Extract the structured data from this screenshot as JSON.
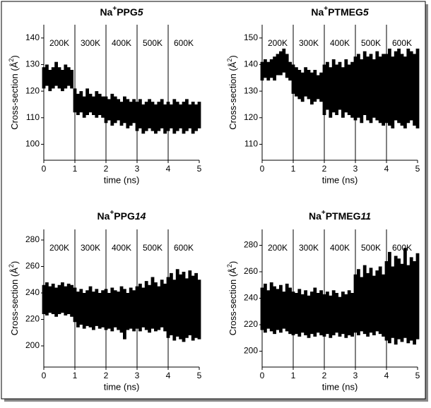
{
  "chart_data": [
    {
      "type": "range",
      "title": [
        "Na",
        "+",
        "PPG",
        "5"
      ],
      "ylabel": [
        "Cross-section (Å",
        "2",
        ")"
      ],
      "xlabel": "time (ns)",
      "regions": [
        "200K",
        "300K",
        "400K",
        "500K",
        "600K"
      ],
      "dividers": [
        1,
        2,
        3,
        4
      ],
      "xlim": [
        0,
        5
      ],
      "ylim": [
        94,
        145
      ],
      "xticks": [
        0,
        1,
        2,
        3,
        4,
        5
      ],
      "yticks": [
        100,
        110,
        120,
        130,
        140
      ],
      "x": [
        0,
        0.1,
        0.2,
        0.3,
        0.4,
        0.5,
        0.6,
        0.7,
        0.8,
        0.9,
        1,
        1.1,
        1.2,
        1.3,
        1.4,
        1.5,
        1.6,
        1.7,
        1.8,
        1.9,
        2,
        2.1,
        2.2,
        2.3,
        2.4,
        2.5,
        2.6,
        2.7,
        2.8,
        2.9,
        3,
        3.1,
        3.2,
        3.3,
        3.4,
        3.5,
        3.6,
        3.7,
        3.8,
        3.9,
        4,
        4.1,
        4.2,
        4.3,
        4.4,
        4.5,
        4.6,
        4.7,
        4.8,
        4.9,
        5
      ],
      "series": [
        {
          "color": "#000000",
          "low": [
            121,
            122,
            120,
            121,
            122,
            121,
            120,
            121,
            122,
            121,
            112,
            111,
            112,
            110,
            111,
            112,
            111,
            110,
            111,
            110,
            108,
            109,
            107,
            108,
            109,
            107,
            108,
            106,
            107,
            108,
            105,
            106,
            104,
            105,
            106,
            105,
            104,
            105,
            106,
            104,
            105,
            106,
            104,
            105,
            106,
            104,
            105,
            106,
            104,
            105,
            106
          ],
          "high": [
            129,
            130,
            128,
            129,
            131,
            129,
            128,
            130,
            129,
            128,
            121,
            119,
            120,
            118,
            121,
            119,
            118,
            120,
            119,
            118,
            118,
            117,
            119,
            118,
            117,
            116,
            118,
            117,
            116,
            117,
            116,
            117,
            115,
            116,
            117,
            116,
            115,
            116,
            117,
            115,
            116,
            115,
            117,
            116,
            115,
            116,
            117,
            115,
            116,
            115,
            116
          ]
        }
      ]
    },
    {
      "type": "range",
      "title": [
        "Na",
        "+",
        "PTMEG",
        "5"
      ],
      "ylabel": [
        "Cross-section (Å",
        "2",
        ")"
      ],
      "xlabel": "time (ns)",
      "regions": [
        "200K",
        "300K",
        "400K",
        "500K",
        "600K"
      ],
      "dividers": [
        1,
        2,
        3,
        4
      ],
      "xlim": [
        0,
        5
      ],
      "ylim": [
        104,
        155
      ],
      "xticks": [
        0,
        1,
        2,
        3,
        4,
        5
      ],
      "yticks": [
        110,
        120,
        130,
        140,
        150
      ],
      "x": [
        0,
        0.1,
        0.2,
        0.3,
        0.4,
        0.5,
        0.6,
        0.7,
        0.8,
        0.9,
        1,
        1.1,
        1.2,
        1.3,
        1.4,
        1.5,
        1.6,
        1.7,
        1.8,
        1.9,
        2,
        2.1,
        2.2,
        2.3,
        2.4,
        2.5,
        2.6,
        2.7,
        2.8,
        2.9,
        3,
        3.1,
        3.2,
        3.3,
        3.4,
        3.5,
        3.6,
        3.7,
        3.8,
        3.9,
        4,
        4.1,
        4.2,
        4.3,
        4.4,
        4.5,
        4.6,
        4.7,
        4.8,
        4.9,
        5
      ],
      "series": [
        {
          "color": "#000000",
          "low": [
            134,
            135,
            134,
            135,
            134,
            136,
            136,
            137,
            135,
            134,
            129,
            128,
            127,
            126,
            128,
            127,
            125,
            126,
            127,
            126,
            121,
            123,
            120,
            122,
            121,
            123,
            120,
            122,
            121,
            120,
            119,
            120,
            118,
            121,
            119,
            118,
            120,
            119,
            118,
            117,
            118,
            117,
            116,
            119,
            118,
            117,
            116,
            118,
            119,
            117,
            116
          ],
          "high": [
            141,
            142,
            141,
            142,
            143,
            144,
            145,
            146,
            144,
            141,
            140,
            139,
            138,
            137,
            139,
            138,
            137,
            138,
            136,
            137,
            140,
            141,
            139,
            142,
            140,
            141,
            139,
            142,
            140,
            141,
            143,
            144,
            142,
            145,
            143,
            144,
            142,
            145,
            143,
            144,
            144,
            146,
            143,
            145,
            146,
            144,
            143,
            146,
            145,
            144,
            146
          ]
        }
      ]
    },
    {
      "type": "range",
      "title": [
        "Na",
        "+",
        "PPG",
        "14"
      ],
      "ylabel": [
        "Cross-section (Å",
        "2",
        ")"
      ],
      "xlabel": "time (ns)",
      "regions": [
        "200K",
        "300K",
        "400K",
        "500K",
        "600K"
      ],
      "dividers": [
        1,
        2,
        3,
        4
      ],
      "xlim": [
        0,
        5
      ],
      "ylim": [
        184,
        288
      ],
      "xticks": [
        0,
        1,
        2,
        3,
        4,
        5
      ],
      "yticks": [
        200,
        220,
        240,
        260,
        280
      ],
      "x": [
        0,
        0.1,
        0.2,
        0.3,
        0.4,
        0.5,
        0.6,
        0.7,
        0.8,
        0.9,
        1,
        1.1,
        1.2,
        1.3,
        1.4,
        1.5,
        1.6,
        1.7,
        1.8,
        1.9,
        2,
        2.1,
        2.2,
        2.3,
        2.4,
        2.5,
        2.6,
        2.7,
        2.8,
        2.9,
        3,
        3.1,
        3.2,
        3.3,
        3.4,
        3.5,
        3.6,
        3.7,
        3.8,
        3.9,
        4,
        4.1,
        4.2,
        4.3,
        4.4,
        4.5,
        4.6,
        4.7,
        4.8,
        4.9,
        5
      ],
      "series": [
        {
          "color": "#000000",
          "low": [
            224,
            223,
            225,
            224,
            222,
            224,
            225,
            223,
            224,
            222,
            218,
            214,
            216,
            213,
            215,
            214,
            212,
            215,
            213,
            214,
            212,
            213,
            211,
            214,
            212,
            210,
            205,
            212,
            213,
            211,
            213,
            211,
            214,
            212,
            210,
            213,
            211,
            212,
            214,
            211,
            206,
            208,
            204,
            207,
            205,
            203,
            206,
            208,
            204,
            206,
            205
          ],
          "high": [
            246,
            248,
            245,
            247,
            244,
            246,
            248,
            245,
            247,
            246,
            244,
            241,
            243,
            240,
            242,
            245,
            241,
            243,
            240,
            242,
            243,
            240,
            244,
            242,
            241,
            245,
            243,
            240,
            244,
            242,
            245,
            247,
            244,
            249,
            246,
            252,
            248,
            245,
            250,
            247,
            252,
            255,
            250,
            258,
            254,
            256,
            251,
            257,
            253,
            255,
            250
          ]
        }
      ]
    },
    {
      "type": "range",
      "title": [
        "Na",
        "+",
        "PTMEG",
        "11"
      ],
      "ylabel": [
        "Cross-section (Å",
        "2",
        ")"
      ],
      "xlabel": "time (ns)",
      "regions": [
        "200K",
        "300K",
        "400K",
        "500K",
        "600K"
      ],
      "dividers": [
        1,
        2,
        3,
        4
      ],
      "xlim": [
        0,
        5
      ],
      "ylim": [
        188,
        292
      ],
      "xticks": [
        0,
        1,
        2,
        3,
        4,
        5
      ],
      "yticks": [
        200,
        220,
        240,
        260,
        280
      ],
      "x": [
        0,
        0.1,
        0.2,
        0.3,
        0.4,
        0.5,
        0.6,
        0.7,
        0.8,
        0.9,
        1,
        1.1,
        1.2,
        1.3,
        1.4,
        1.5,
        1.6,
        1.7,
        1.8,
        1.9,
        2,
        2.1,
        2.2,
        2.3,
        2.4,
        2.5,
        2.6,
        2.7,
        2.8,
        2.9,
        3,
        3.1,
        3.2,
        3.3,
        3.4,
        3.5,
        3.6,
        3.7,
        3.8,
        3.9,
        4,
        4.1,
        4.2,
        4.3,
        4.4,
        4.5,
        4.6,
        4.7,
        4.8,
        4.9,
        5
      ],
      "series": [
        {
          "color": "#000000",
          "low": [
            216,
            214,
            217,
            215,
            213,
            216,
            214,
            217,
            215,
            213,
            212,
            213,
            211,
            214,
            212,
            210,
            213,
            211,
            214,
            212,
            211,
            213,
            210,
            212,
            214,
            211,
            213,
            210,
            212,
            211,
            214,
            212,
            215,
            213,
            211,
            214,
            212,
            215,
            213,
            211,
            208,
            206,
            210,
            205,
            209,
            207,
            210,
            206,
            208,
            205,
            209
          ],
          "high": [
            248,
            251,
            246,
            252,
            249,
            247,
            250,
            245,
            251,
            248,
            245,
            244,
            247,
            243,
            246,
            242,
            245,
            248,
            244,
            246,
            243,
            245,
            242,
            246,
            244,
            241,
            245,
            243,
            246,
            244,
            258,
            262,
            256,
            265,
            259,
            263,
            257,
            261,
            264,
            258,
            268,
            275,
            264,
            272,
            270,
            266,
            278,
            265,
            271,
            268,
            274
          ]
        }
      ]
    }
  ]
}
